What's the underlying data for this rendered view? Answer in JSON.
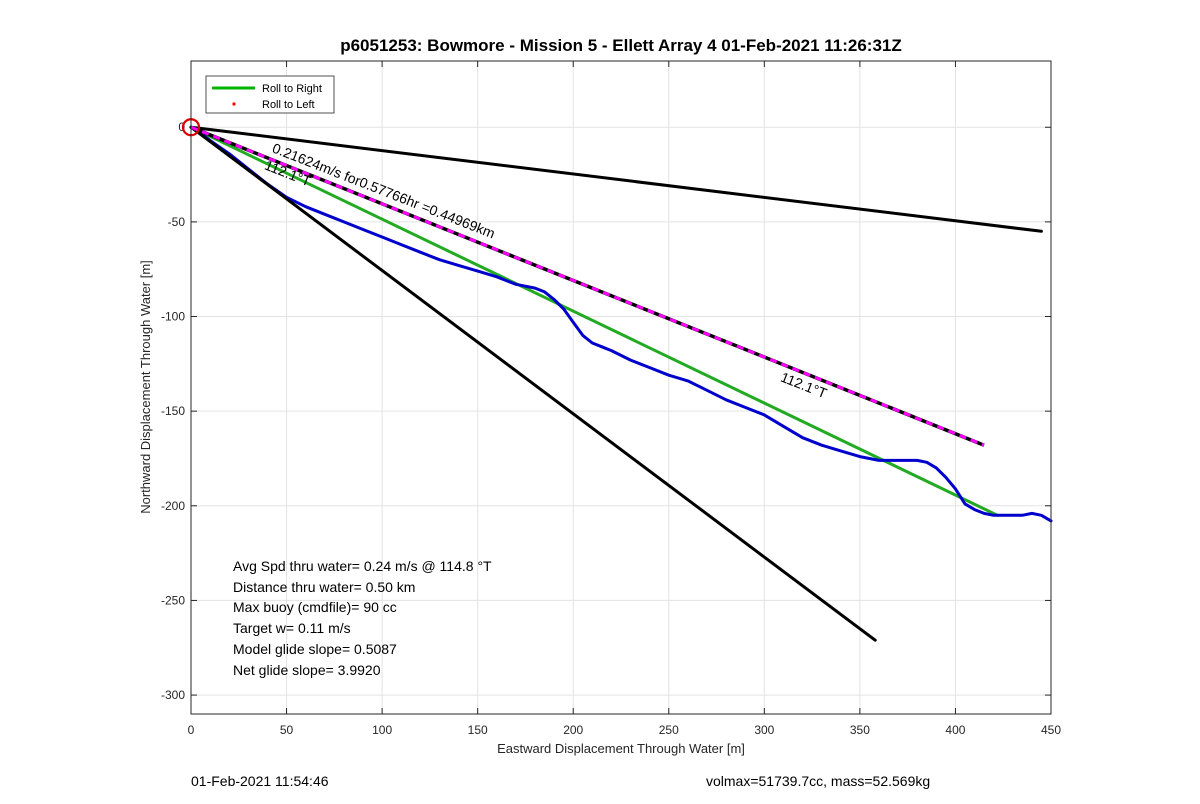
{
  "chart_data": {
    "type": "line",
    "title": "p6051253: Bowmore - Mission 5 - Ellett Array 4 01-Feb-2021 11:26:31Z",
    "xlabel": "Eastward Displacement Through Water [m]",
    "ylabel": "Northward Displacement Through Water [m]",
    "xlim": [
      0,
      450
    ],
    "ylim": [
      -310,
      35
    ],
    "xticks": [
      0,
      50,
      100,
      150,
      200,
      250,
      300,
      350,
      400,
      450
    ],
    "yticks": [
      0,
      -50,
      -100,
      -150,
      -200,
      -250,
      -300
    ],
    "grid": true,
    "legend": {
      "placement": "top-left",
      "entries": [
        {
          "label": "Roll to Right",
          "color": "#00b400",
          "style": "line"
        },
        {
          "label": "Roll to Left",
          "color": "#ff0000",
          "style": "dot"
        }
      ]
    },
    "series": [
      {
        "name": "Roll to Right",
        "color": "#22aa22",
        "x": [
          0,
          422
        ],
        "y": [
          0,
          -205
        ]
      },
      {
        "color": "#0000cc",
        "x": [
          0,
          5,
          10,
          20,
          30,
          40,
          50,
          60,
          70,
          80,
          90,
          100,
          110,
          120,
          130,
          140,
          150,
          160,
          165,
          170,
          175,
          180,
          185,
          190,
          195,
          200,
          205,
          210,
          215,
          220,
          230,
          240,
          250,
          260,
          270,
          280,
          290,
          300,
          310,
          320,
          330,
          340,
          350,
          360,
          370,
          380,
          385,
          390,
          395,
          400,
          405,
          410,
          415,
          420,
          425,
          430,
          435,
          440,
          445,
          450
        ],
        "y": [
          0,
          -3,
          -7,
          -14,
          -22,
          -30,
          -37,
          -42,
          -46,
          -50,
          -54,
          -58,
          -62,
          -66,
          -70,
          -73,
          -76,
          -79,
          -81,
          -83,
          -84,
          -85,
          -87,
          -91,
          -96,
          -103,
          -110,
          -114,
          -116,
          -118,
          -123,
          -127,
          -131,
          -134,
          -139,
          -144,
          -148,
          -152,
          -158,
          -164,
          -168,
          -171,
          -174,
          -176,
          -176,
          -176,
          -177,
          -180,
          -185,
          -191,
          -199,
          -202,
          -204,
          -205,
          -205,
          -205,
          -205,
          -204,
          -205,
          -208
        ]
      },
      {
        "color": "#000000",
        "x": [
          0,
          445
        ],
        "y": [
          0,
          -55
        ]
      },
      {
        "color": "#000000",
        "x": [
          0,
          358
        ],
        "y": [
          0,
          -271
        ]
      },
      {
        "color": "#ff00ff",
        "dashed_over": "#000000",
        "x": [
          0,
          415
        ],
        "y": [
          0,
          -168
        ]
      }
    ],
    "annotations": [
      {
        "text": "0.21624m/s for0.57766hr =0.44969km",
        "x": 42,
        "y": -13,
        "angle_deg": 21.4
      },
      {
        "text": "112.1°T",
        "x": 38,
        "y": -22,
        "angle_deg": 21.4
      },
      {
        "text": "112.1°T",
        "x": 308,
        "y": -134,
        "angle_deg": 21.4
      }
    ],
    "start_marker": {
      "x": 0,
      "y": 0,
      "color": "#dd0000"
    },
    "stats": [
      "Avg Spd thru water=  0.24 m/s @ 114.8 °T",
      "Distance thru water=  0.50 km",
      "Max buoy (cmdfile)= 90 cc",
      "Target w= 0.11 m/s",
      "Model glide slope= 0.5087",
      "Net glide slope= 3.9920"
    ]
  },
  "footer": {
    "left": "01-Feb-2021 11:54:46",
    "right": "volmax=51739.7cc, mass=52.569kg"
  }
}
